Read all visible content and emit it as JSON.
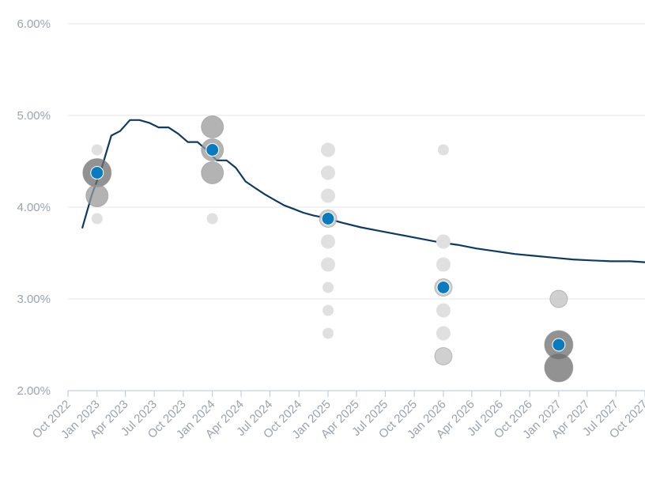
{
  "chart_data": {
    "type": "scatter",
    "title": "",
    "xlabel": "",
    "ylabel": "",
    "ylim": [
      2.0,
      6.0
    ],
    "xlim": [
      "2022-10-01",
      "2027-10-01"
    ],
    "grid": true,
    "legend": "none",
    "yticks": [
      "2.00%",
      "3.00%",
      "4.00%",
      "5.00%",
      "6.00%"
    ],
    "ytick_values": [
      2.0,
      3.0,
      4.0,
      5.0,
      6.0
    ],
    "xticks": [
      {
        "date": "2022-10-01",
        "label": "Oct 2022"
      },
      {
        "date": "2023-01-01",
        "label": "Jan 2023"
      },
      {
        "date": "2023-04-01",
        "label": "Apr 2023"
      },
      {
        "date": "2023-07-01",
        "label": "Jul 2023"
      },
      {
        "date": "2023-10-01",
        "label": "Oct 2023"
      },
      {
        "date": "2024-01-01",
        "label": "Jan 2024"
      },
      {
        "date": "2024-04-01",
        "label": "Apr 2024"
      },
      {
        "date": "2024-07-01",
        "label": "Jul 2024"
      },
      {
        "date": "2024-10-01",
        "label": "Oct 2024"
      },
      {
        "date": "2025-01-01",
        "label": "Jan 2025"
      },
      {
        "date": "2025-04-01",
        "label": "Apr 2025"
      },
      {
        "date": "2025-07-01",
        "label": "Jul 2025"
      },
      {
        "date": "2025-10-01",
        "label": "Oct 2025"
      },
      {
        "date": "2026-01-01",
        "label": "Jan 2026"
      },
      {
        "date": "2026-04-01",
        "label": "Apr 2026"
      },
      {
        "date": "2026-07-01",
        "label": "Jul 2026"
      },
      {
        "date": "2026-10-01",
        "label": "Oct 2026"
      },
      {
        "date": "2027-01-01",
        "label": "Jan 2027"
      },
      {
        "date": "2027-04-01",
        "label": "Apr 2027"
      },
      {
        "date": "2027-07-01",
        "label": "Jul 2027"
      },
      {
        "date": "2027-10-01",
        "label": "Oct 2027"
      }
    ],
    "colors": {
      "line": "#0d3b66",
      "median": "#0a7bbf",
      "dot_heavy": "#6e6e6e",
      "dot_mid": "#9a9a9a",
      "dot_light": "#c8c8c8",
      "dot_faint": "#e0e0e0",
      "grid": "#e6e6e6",
      "axis": "#b8c6d8",
      "tick_label": "#9aa3ad"
    },
    "dots": [
      {
        "date": "2023-01-01",
        "y": 4.625,
        "weight": 1
      },
      {
        "date": "2023-01-01",
        "y": 4.375,
        "weight": 6
      },
      {
        "date": "2023-01-01",
        "y": 4.125,
        "weight": 5
      },
      {
        "date": "2023-01-01",
        "y": 3.875,
        "weight": 1
      },
      {
        "date": "2024-01-01",
        "y": 4.875,
        "weight": 4
      },
      {
        "date": "2024-01-01",
        "y": 4.625,
        "weight": 4
      },
      {
        "date": "2024-01-01",
        "y": 4.375,
        "weight": 4
      },
      {
        "date": "2024-01-01",
        "y": 3.875,
        "weight": 1
      },
      {
        "date": "2025-01-01",
        "y": 4.625,
        "weight": 2
      },
      {
        "date": "2025-01-01",
        "y": 4.375,
        "weight": 2
      },
      {
        "date": "2025-01-01",
        "y": 4.125,
        "weight": 2
      },
      {
        "date": "2025-01-01",
        "y": 3.875,
        "weight": 3
      },
      {
        "date": "2025-01-01",
        "y": 3.625,
        "weight": 2
      },
      {
        "date": "2025-01-01",
        "y": 3.375,
        "weight": 2
      },
      {
        "date": "2025-01-01",
        "y": 3.125,
        "weight": 1
      },
      {
        "date": "2025-01-01",
        "y": 2.875,
        "weight": 1
      },
      {
        "date": "2025-01-01",
        "y": 2.625,
        "weight": 1
      },
      {
        "date": "2026-01-01",
        "y": 4.625,
        "weight": 1
      },
      {
        "date": "2026-01-01",
        "y": 3.625,
        "weight": 2
      },
      {
        "date": "2026-01-01",
        "y": 3.375,
        "weight": 2
      },
      {
        "date": "2026-01-01",
        "y": 3.125,
        "weight": 3
      },
      {
        "date": "2026-01-01",
        "y": 2.875,
        "weight": 2
      },
      {
        "date": "2026-01-01",
        "y": 2.625,
        "weight": 2
      },
      {
        "date": "2026-01-01",
        "y": 2.375,
        "weight": 3
      },
      {
        "date": "2027-01-01",
        "y": 3.0,
        "weight": 3
      },
      {
        "date": "2027-01-01",
        "y": 2.5,
        "weight": 7
      },
      {
        "date": "2027-01-01",
        "y": 2.25,
        "weight": 6
      }
    ],
    "medians": [
      {
        "date": "2023-01-01",
        "y": 4.375
      },
      {
        "date": "2024-01-01",
        "y": 4.625
      },
      {
        "date": "2025-01-01",
        "y": 3.875
      },
      {
        "date": "2026-01-01",
        "y": 3.125
      },
      {
        "date": "2027-01-01",
        "y": 2.5
      }
    ],
    "line": {
      "x": [
        "2022-11-15",
        "2022-12-15",
        "2023-01-15",
        "2023-02-15",
        "2023-03-15",
        "2023-04-15",
        "2023-05-15",
        "2023-06-15",
        "2023-07-15",
        "2023-08-15",
        "2023-09-15",
        "2023-10-15",
        "2023-11-15",
        "2023-12-15",
        "2024-01-15",
        "2024-02-15",
        "2024-03-15",
        "2024-04-15",
        "2024-05-15",
        "2024-06-15",
        "2024-07-15",
        "2024-08-15",
        "2024-09-15",
        "2024-10-15",
        "2024-11-15",
        "2024-12-15",
        "2025-01-15",
        "2025-02-15",
        "2025-04-15",
        "2025-06-15",
        "2025-08-15",
        "2025-10-15",
        "2025-12-15",
        "2026-02-15",
        "2026-04-15",
        "2026-06-15",
        "2026-08-15",
        "2026-10-15",
        "2026-12-15",
        "2027-02-15",
        "2027-04-15",
        "2027-06-15",
        "2027-08-15",
        "2027-10-01"
      ],
      "y": [
        3.77,
        4.13,
        4.42,
        4.78,
        4.83,
        4.95,
        4.95,
        4.92,
        4.87,
        4.87,
        4.8,
        4.71,
        4.71,
        4.62,
        4.51,
        4.51,
        4.43,
        4.28,
        4.21,
        4.14,
        4.08,
        4.02,
        3.98,
        3.94,
        3.91,
        3.89,
        3.86,
        3.83,
        3.78,
        3.74,
        3.7,
        3.66,
        3.62,
        3.59,
        3.55,
        3.52,
        3.49,
        3.47,
        3.45,
        3.43,
        3.42,
        3.41,
        3.41,
        3.4
      ]
    }
  }
}
